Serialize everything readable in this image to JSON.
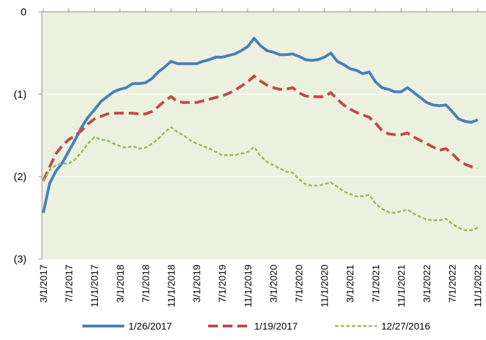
{
  "chart_data": {
    "type": "line",
    "categories": [
      "3/1/2017",
      null,
      null,
      null,
      "7/1/2017",
      null,
      null,
      null,
      "11/1/2017",
      null,
      null,
      null,
      "3/1/2018",
      null,
      null,
      null,
      "7/1/2018",
      null,
      null,
      null,
      "11/1/2018",
      null,
      null,
      null,
      "3/1/2019",
      null,
      null,
      null,
      "7/1/2019",
      null,
      null,
      null,
      "11/1/2019",
      null,
      null,
      null,
      "3/1/2020",
      null,
      null,
      null,
      "7/1/2020",
      null,
      null,
      null,
      "11/1/2020",
      null,
      null,
      null,
      "3/1/2021",
      null,
      null,
      null,
      "7/1/2021",
      null,
      null,
      null,
      "11/1/2021",
      null,
      null,
      null,
      "3/1/2022",
      null,
      null,
      null,
      "7/1/2022",
      null,
      null,
      null,
      "11/1/2022"
    ],
    "series": [
      {
        "name": "1/26/2017",
        "color": "#4a7ebb",
        "dash": "solid",
        "values": [
          -2.44,
          -2.08,
          -1.93,
          -1.83,
          -1.69,
          -1.55,
          -1.4,
          -1.28,
          -1.19,
          -1.09,
          -1.03,
          -0.97,
          -0.94,
          -0.92,
          -0.87,
          -0.87,
          -0.86,
          -0.81,
          -0.73,
          -0.67,
          -0.6,
          -0.63,
          -0.63,
          -0.63,
          -0.63,
          -0.6,
          -0.58,
          -0.55,
          -0.55,
          -0.53,
          -0.51,
          -0.47,
          -0.42,
          -0.32,
          -0.41,
          -0.47,
          -0.49,
          -0.52,
          -0.52,
          -0.51,
          -0.54,
          -0.58,
          -0.59,
          -0.58,
          -0.55,
          -0.5,
          -0.6,
          -0.64,
          -0.69,
          -0.71,
          -0.75,
          -0.73,
          -0.85,
          -0.92,
          -0.94,
          -0.97,
          -0.97,
          -0.92,
          -0.98,
          -1.04,
          -1.1,
          -1.13,
          -1.14,
          -1.13,
          -1.21,
          -1.3,
          -1.33,
          -1.34,
          -1.31
        ]
      },
      {
        "name": "1/19/2017",
        "color": "#be4b48",
        "dash": "dashed",
        "values": [
          -2.05,
          -1.88,
          -1.72,
          -1.62,
          -1.55,
          -1.5,
          -1.44,
          -1.36,
          -1.3,
          -1.27,
          -1.24,
          -1.23,
          -1.23,
          -1.23,
          -1.23,
          -1.24,
          -1.24,
          -1.21,
          -1.15,
          -1.08,
          -1.03,
          -1.09,
          -1.1,
          -1.1,
          -1.1,
          -1.08,
          -1.06,
          -1.04,
          -1.02,
          -0.99,
          -0.95,
          -0.9,
          -0.85,
          -0.78,
          -0.84,
          -0.89,
          -0.92,
          -0.94,
          -0.94,
          -0.92,
          -0.98,
          -1.02,
          -1.03,
          -1.03,
          -1.03,
          -0.98,
          -1.06,
          -1.13,
          -1.18,
          -1.22,
          -1.25,
          -1.28,
          -1.35,
          -1.44,
          -1.48,
          -1.49,
          -1.49,
          -1.47,
          -1.52,
          -1.56,
          -1.6,
          -1.64,
          -1.68,
          -1.66,
          -1.72,
          -1.8,
          -1.85,
          -1.88,
          -1.89
        ]
      },
      {
        "name": "12/27/2016",
        "color": "#98b954",
        "dash": "dotted",
        "values": [
          -2.05,
          -1.92,
          -1.86,
          -1.84,
          -1.84,
          -1.79,
          -1.7,
          -1.6,
          -1.52,
          -1.55,
          -1.56,
          -1.6,
          -1.63,
          -1.65,
          -1.63,
          -1.66,
          -1.65,
          -1.6,
          -1.54,
          -1.46,
          -1.4,
          -1.46,
          -1.5,
          -1.56,
          -1.6,
          -1.63,
          -1.66,
          -1.7,
          -1.74,
          -1.74,
          -1.74,
          -1.72,
          -1.7,
          -1.64,
          -1.75,
          -1.82,
          -1.86,
          -1.9,
          -1.94,
          -1.95,
          -2.03,
          -2.09,
          -2.11,
          -2.11,
          -2.09,
          -2.07,
          -2.12,
          -2.18,
          -2.21,
          -2.24,
          -2.24,
          -2.22,
          -2.33,
          -2.39,
          -2.43,
          -2.44,
          -2.42,
          -2.4,
          -2.45,
          -2.49,
          -2.52,
          -2.53,
          -2.53,
          -2.51,
          -2.57,
          -2.62,
          -2.65,
          -2.65,
          -2.62
        ]
      }
    ],
    "ylim": [
      -3,
      0
    ],
    "yticks": [
      {
        "value": -3,
        "label": "(3)"
      },
      {
        "value": -2,
        "label": "(2)"
      },
      {
        "value": -1,
        "label": "(1)"
      },
      0
    ],
    "negative_label_color": "#c00000",
    "plot_background": "#ebf1de",
    "grid": true,
    "legend": "bottom"
  }
}
